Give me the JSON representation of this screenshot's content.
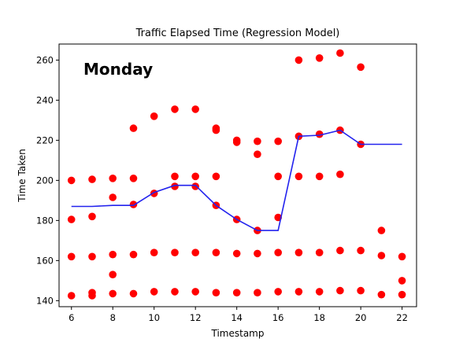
{
  "chart_data": {
    "type": "scatter",
    "title": "Traffic Elapsed Time (Regression Model)",
    "xlabel": "Timestamp",
    "ylabel": "Time Taken",
    "annotation": "Monday",
    "xlim": [
      5.4,
      22.7
    ],
    "ylim": [
      137,
      268
    ],
    "xticks": [
      6,
      8,
      10,
      12,
      14,
      16,
      18,
      20,
      22
    ],
    "yticks": [
      140,
      160,
      180,
      200,
      220,
      240,
      260
    ],
    "grid": false,
    "legend": false,
    "colors": {
      "points": "#ff0000",
      "line": "#2222ee",
      "axes": "#000000"
    },
    "points": [
      {
        "x": 6,
        "y": 200
      },
      {
        "x": 6,
        "y": 180.5
      },
      {
        "x": 6,
        "y": 162
      },
      {
        "x": 6,
        "y": 142.5
      },
      {
        "x": 7,
        "y": 200.5
      },
      {
        "x": 7,
        "y": 182
      },
      {
        "x": 7,
        "y": 162
      },
      {
        "x": 7,
        "y": 144
      },
      {
        "x": 7,
        "y": 142.5
      },
      {
        "x": 8,
        "y": 201
      },
      {
        "x": 8,
        "y": 191.5
      },
      {
        "x": 8,
        "y": 163
      },
      {
        "x": 8,
        "y": 153
      },
      {
        "x": 8,
        "y": 143.5
      },
      {
        "x": 9,
        "y": 226
      },
      {
        "x": 9,
        "y": 201
      },
      {
        "x": 9,
        "y": 188
      },
      {
        "x": 9,
        "y": 163
      },
      {
        "x": 9,
        "y": 143.5
      },
      {
        "x": 10,
        "y": 232
      },
      {
        "x": 10,
        "y": 193.5
      },
      {
        "x": 10,
        "y": 164
      },
      {
        "x": 10,
        "y": 144.5
      },
      {
        "x": 11,
        "y": 235.5
      },
      {
        "x": 11,
        "y": 202
      },
      {
        "x": 11,
        "y": 197
      },
      {
        "x": 11,
        "y": 164
      },
      {
        "x": 11,
        "y": 144.5
      },
      {
        "x": 12,
        "y": 235.5
      },
      {
        "x": 12,
        "y": 202
      },
      {
        "x": 12,
        "y": 197
      },
      {
        "x": 12,
        "y": 164
      },
      {
        "x": 12,
        "y": 144.5
      },
      {
        "x": 13,
        "y": 226
      },
      {
        "x": 13,
        "y": 225
      },
      {
        "x": 13,
        "y": 202
      },
      {
        "x": 13,
        "y": 187.5
      },
      {
        "x": 13,
        "y": 164
      },
      {
        "x": 13,
        "y": 144
      },
      {
        "x": 14,
        "y": 220
      },
      {
        "x": 14,
        "y": 219
      },
      {
        "x": 14,
        "y": 180.5
      },
      {
        "x": 14,
        "y": 163.5
      },
      {
        "x": 14,
        "y": 144
      },
      {
        "x": 15,
        "y": 219.5
      },
      {
        "x": 15,
        "y": 213
      },
      {
        "x": 15,
        "y": 175
      },
      {
        "x": 15,
        "y": 163.5
      },
      {
        "x": 15,
        "y": 144
      },
      {
        "x": 16,
        "y": 219.5
      },
      {
        "x": 16,
        "y": 202
      },
      {
        "x": 16,
        "y": 181.5
      },
      {
        "x": 16,
        "y": 164
      },
      {
        "x": 16,
        "y": 144.5
      },
      {
        "x": 17,
        "y": 260
      },
      {
        "x": 17,
        "y": 222
      },
      {
        "x": 17,
        "y": 202
      },
      {
        "x": 17,
        "y": 164
      },
      {
        "x": 17,
        "y": 144.5
      },
      {
        "x": 18,
        "y": 261
      },
      {
        "x": 18,
        "y": 223
      },
      {
        "x": 18,
        "y": 202
      },
      {
        "x": 18,
        "y": 164
      },
      {
        "x": 18,
        "y": 144.5
      },
      {
        "x": 19,
        "y": 263.5
      },
      {
        "x": 19,
        "y": 225
      },
      {
        "x": 19,
        "y": 203
      },
      {
        "x": 19,
        "y": 165
      },
      {
        "x": 19,
        "y": 145
      },
      {
        "x": 20,
        "y": 256.5
      },
      {
        "x": 20,
        "y": 218
      },
      {
        "x": 20,
        "y": 165
      },
      {
        "x": 20,
        "y": 145
      },
      {
        "x": 21,
        "y": 175
      },
      {
        "x": 21,
        "y": 162.5
      },
      {
        "x": 21,
        "y": 143
      },
      {
        "x": 22,
        "y": 162
      },
      {
        "x": 22,
        "y": 150
      },
      {
        "x": 22,
        "y": 143
      }
    ],
    "regression_line": {
      "x": [
        6,
        7,
        8,
        9,
        10,
        11,
        12,
        13,
        14,
        15,
        16,
        17,
        18,
        19,
        20,
        21,
        22
      ],
      "y": [
        187,
        187,
        187.5,
        187.5,
        194,
        197.5,
        197.5,
        187.5,
        180.5,
        175,
        175,
        222,
        222.5,
        225,
        218,
        218,
        218
      ]
    }
  }
}
